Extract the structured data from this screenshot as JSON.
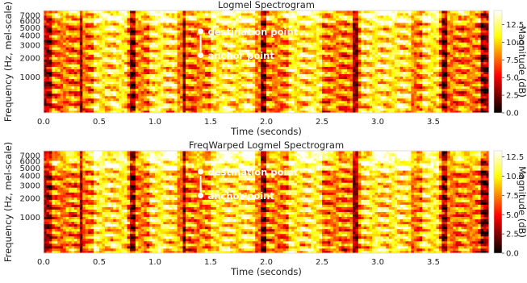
{
  "chart_data": [
    {
      "type": "heatmap",
      "title": "Logmel Spectrogram",
      "xlabel": "Time (seconds)",
      "ylabel": "Frequency (Hz, mel-scale)",
      "xlim": [
        0.0,
        4.0
      ],
      "ylim_hz": [
        0,
        8000
      ],
      "yscale": "mel",
      "x_ticks": [
        "0.0",
        "0.5",
        "1.0",
        "1.5",
        "2.0",
        "2.5",
        "3.0",
        "3.5"
      ],
      "y_ticks": [
        "7000",
        "6000",
        "5000",
        "4000",
        "3000",
        "2000",
        "1000"
      ],
      "colorbar": {
        "label": "Magnitude (dB)",
        "range": [
          0.0,
          14.5
        ],
        "ticks": [
          "0.0",
          "2.5",
          "5.0",
          "7.5",
          "10.0",
          "12.5"
        ],
        "colormap": "hot"
      },
      "annotations": [
        {
          "text": "destination point",
          "time": 1.41,
          "freq": 4500
        },
        {
          "text": "anchor point",
          "time": 1.41,
          "freq": 2200
        }
      ]
    },
    {
      "type": "heatmap",
      "title": "FreqWarped Logmel Spectrogram",
      "xlabel": "Time (seconds)",
      "ylabel": "Frequency (Hz, mel-scale)",
      "xlim": [
        0.0,
        4.0
      ],
      "ylim_hz": [
        0,
        8000
      ],
      "yscale": "mel",
      "x_ticks": [
        "0.0",
        "0.5",
        "1.0",
        "1.5",
        "2.0",
        "2.5",
        "3.0",
        "3.5"
      ],
      "y_ticks": [
        "7000",
        "6000",
        "5000",
        "4000",
        "3000",
        "2000",
        "1000"
      ],
      "colorbar": {
        "label": "Magnitude (dB)",
        "range": [
          0.0,
          13.3
        ],
        "ticks": [
          "0.0",
          "2.5",
          "5.0",
          "7.5",
          "10.0",
          "12.5"
        ],
        "colormap": "hot"
      },
      "annotations": [
        {
          "text": "destination point",
          "time": 1.41,
          "freq": 4500
        },
        {
          "text": "anchor point",
          "time": 1.41,
          "freq": 2200
        }
      ]
    }
  ]
}
